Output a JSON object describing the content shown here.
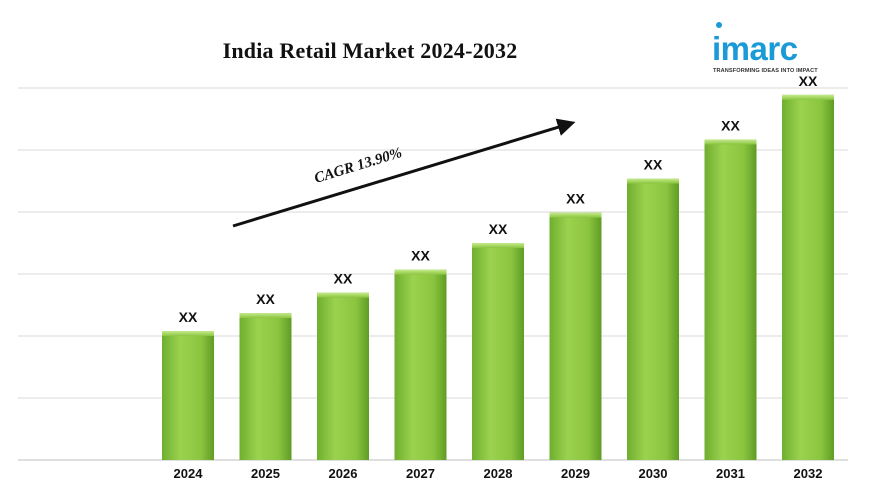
{
  "header": {
    "title": "India Retail Market 2024-2032"
  },
  "logo": {
    "word": "imarc",
    "tagline": "TRANSFORMING IDEAS INTO IMPACT",
    "color": "#1a9ad6"
  },
  "chart_data": {
    "type": "bar",
    "title": "India Retail Market 2024-2032",
    "xlabel": "",
    "ylabel": "",
    "categories": [
      "2024",
      "2025",
      "2026",
      "2027",
      "2028",
      "2029",
      "2030",
      "2031",
      "2032"
    ],
    "values": [
      2.08,
      2.37,
      2.7,
      3.07,
      3.5,
      3.99,
      4.54,
      5.17,
      5.89
    ],
    "data_labels": [
      "XX",
      "XX",
      "XX",
      "XX",
      "XX",
      "XX",
      "XX",
      "XX",
      "XX"
    ],
    "ylim": [
      0,
      6.0
    ],
    "grid": true,
    "legend": "none",
    "bar_color": "#8bc53f",
    "annotation": {
      "text": "CAGR 13.90%",
      "arrow_direction": "up-right"
    }
  }
}
